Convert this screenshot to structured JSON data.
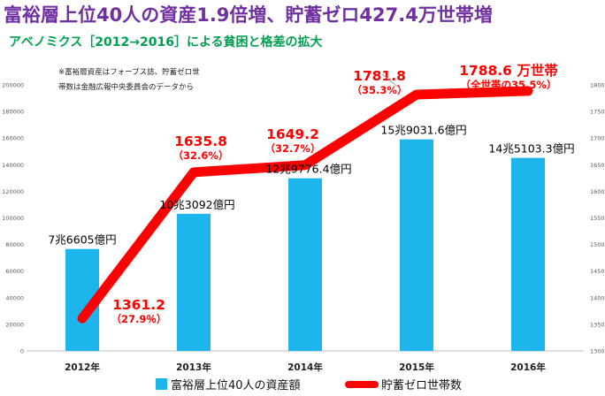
{
  "chart_data": {
    "type": "bar",
    "title": "富裕層上位40人の資産1.9倍増、貯蓄ゼロ427.4万世帯増",
    "subtitle": "アベノミクス［2012→2016］による貧困と格差の拡大",
    "note": [
      "※富裕層資産はフォーブス誌、貯蓄ゼロ世",
      "帯数は金融広報中央委員会のデータから"
    ],
    "categories": [
      "2012年",
      "2013年",
      "2014年",
      "2015年",
      "2016年"
    ],
    "series": [
      {
        "name": "富裕層上位40人の資産額",
        "type": "bar",
        "axis": "left",
        "color": "#1eb4ec",
        "values": [
          76605,
          103092,
          129776.4,
          159031.6,
          145103.3
        ],
        "labels": [
          "7兆6605億円",
          "10兆3092億円",
          "12兆9776.4億円",
          "15兆9031.6億円",
          "14兆5103.3億円"
        ]
      },
      {
        "name": "貯蓄ゼロ世帯数",
        "type": "line",
        "axis": "right",
        "color": "#ff0000",
        "values": [
          1361.2,
          1635.8,
          1649.2,
          1781.8,
          1788.6
        ],
        "labels": [
          [
            "1361.2",
            "（27.9％）"
          ],
          [
            "1635.8",
            "（32.6%）"
          ],
          [
            "1649.2",
            "（32.7%）"
          ],
          [
            "1781.8",
            "（35.3%）"
          ],
          [
            "1788.6 万世帯",
            "（全世帯の35.5%）"
          ]
        ]
      }
    ],
    "y_left": {
      "min": 0,
      "max": 200000,
      "ticks": [
        "0",
        "20000",
        "40000",
        "60000",
        "80000",
        "100000",
        "120000",
        "140000",
        "160000",
        "180000",
        "200000"
      ]
    },
    "y_right": {
      "min": 1300,
      "max": 1800,
      "ticks": [
        "1300",
        "1350",
        "1400",
        "1450",
        "1500",
        "1550",
        "1600",
        "1650",
        "1700",
        "1750",
        "1800"
      ]
    },
    "legend_position": "bottom"
  }
}
